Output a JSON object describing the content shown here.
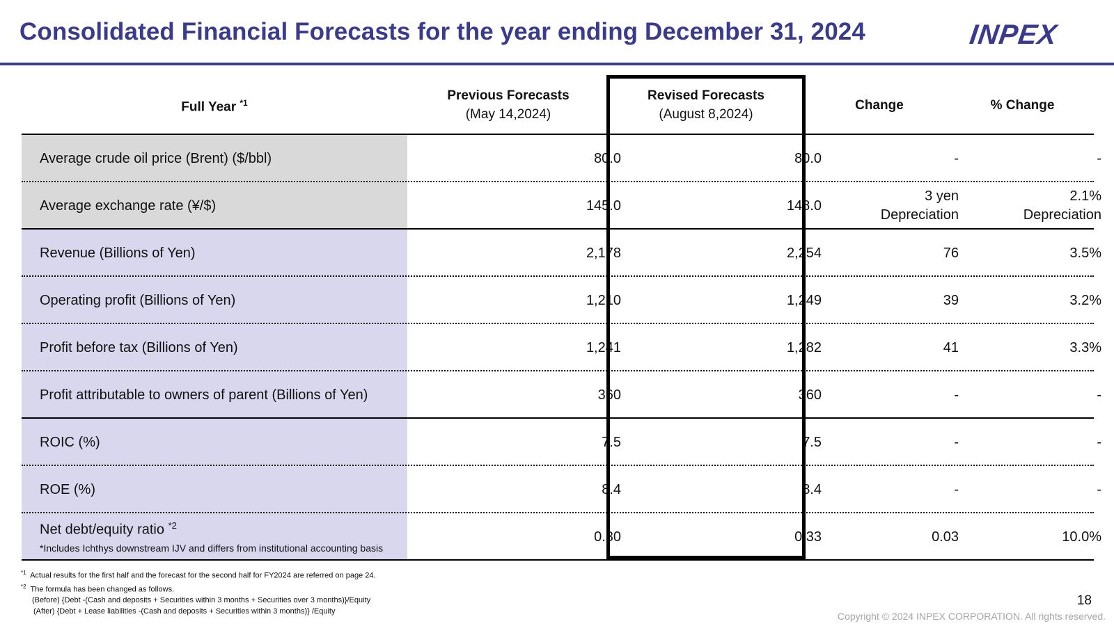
{
  "page": {
    "title": "Consolidated Financial Forecasts for the year ending December 31, 2024",
    "logo_text": "INPEX",
    "page_number": "18",
    "copyright": "Copyright © 2024 INPEX CORPORATION. All rights reserved."
  },
  "table": {
    "headers": {
      "col1": "Full Year",
      "col1_sup": "*1",
      "prev_line1": "Previous Forecasts",
      "prev_line2": "(May 14,2024)",
      "rev_line1": "Revised Forecasts",
      "rev_line2": "(August 8,2024)",
      "change": "Change",
      "pct_change": "% Change"
    },
    "rows": [
      {
        "label": "Average crude oil price (Brent) ($/bbl)",
        "prev": "80.0",
        "rev": "80.0",
        "change_l1": "-",
        "change_l2": "",
        "pct_l1": "-",
        "pct_l2": ""
      },
      {
        "label": "Average exchange rate (¥/$)",
        "prev": "145.0",
        "rev": "148.0",
        "change_l1": "3 yen",
        "change_l2": "Depreciation",
        "pct_l1": "2.1%",
        "pct_l2": "Depreciation"
      },
      {
        "label": "Revenue (Billions of Yen)",
        "prev": "2,178",
        "rev": "2,254",
        "change_l1": "76",
        "change_l2": "",
        "pct_l1": "3.5%",
        "pct_l2": ""
      },
      {
        "label": "Operating profit (Billions of Yen)",
        "prev": "1,210",
        "rev": "1,249",
        "change_l1": "39",
        "change_l2": "",
        "pct_l1": "3.2%",
        "pct_l2": ""
      },
      {
        "label": "Profit before tax (Billions of Yen)",
        "prev": "1,241",
        "rev": "1,282",
        "change_l1": "41",
        "change_l2": "",
        "pct_l1": "3.3%",
        "pct_l2": ""
      },
      {
        "label": "Profit attributable to owners of parent (Billions of Yen)",
        "prev": "360",
        "rev": "360",
        "change_l1": "-",
        "change_l2": "",
        "pct_l1": "-",
        "pct_l2": ""
      },
      {
        "label": "ROIC (%)",
        "prev": "7.5",
        "rev": "7.5",
        "change_l1": "-",
        "change_l2": "",
        "pct_l1": "-",
        "pct_l2": ""
      },
      {
        "label": "ROE (%)",
        "prev": "8.4",
        "rev": "8.4",
        "change_l1": "-",
        "change_l2": "",
        "pct_l1": "-",
        "pct_l2": ""
      },
      {
        "label": "Net debt/equity ratio",
        "label_sup": "*2",
        "label_note": "*Includes Ichthys downstream IJV and differs from institutional accounting basis",
        "prev": "0.30",
        "rev": "0.33",
        "change_l1": "0.03",
        "change_l2": "",
        "pct_l1": "10.0%",
        "pct_l2": ""
      }
    ]
  },
  "footnotes": {
    "n1_mark": "*1",
    "n1_text": "Actual results for the first half and the forecast for the second half for FY2024 are referred on page 24.",
    "n2_mark": "*2",
    "n2_text": "The formula has been changed as follows.",
    "before": "(Before)  {Debt -(Cash and deposits + Securities within 3 months + Securities over 3 months)}/Equity",
    "after": "(After)    {Debt + Lease liabilities -(Cash and deposits + Securities within 3 months)} /Equity"
  }
}
